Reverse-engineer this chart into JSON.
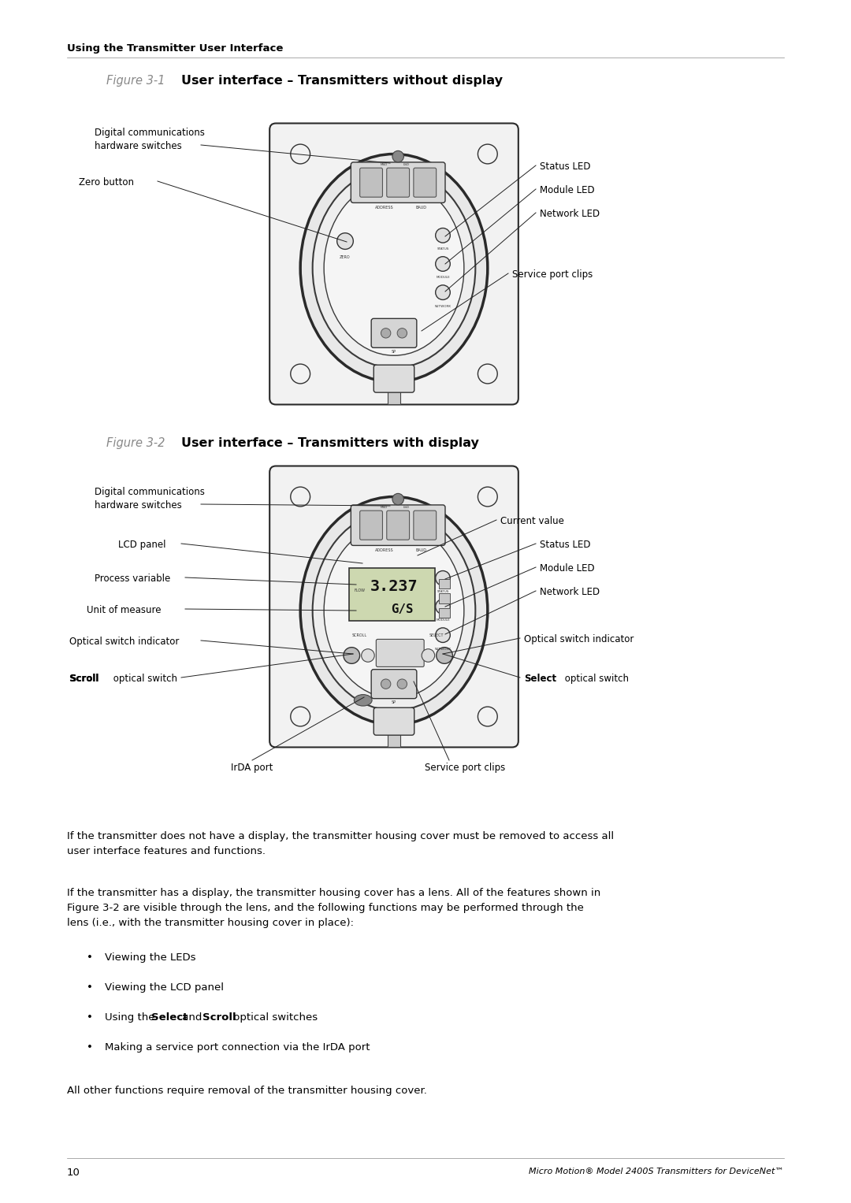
{
  "page_width": 10.8,
  "page_height": 15.27,
  "bg_color": "#ffffff",
  "text_color": "#000000",
  "header_text": "Using the Transmitter User Interface",
  "fig1_label": "Figure 3-1",
  "fig1_title": "User interface – Transmitters without display",
  "fig2_label": "Figure 3-2",
  "fig2_title": "User interface – Transmitters with display",
  "footer_page": "10",
  "footer_right": "Micro Motion® Model 2400S Transmitters for DeviceNet™",
  "body_para1": "If the transmitter does not have a display, the transmitter housing cover must be removed to access all\nuser interface features and functions.",
  "body_para2": "If the transmitter has a display, the transmitter housing cover has a lens. All of the features shown in\nFigure 3-2 are visible through the lens, and the following functions may be performed through the\nlens (i.e., with the transmitter housing cover in place):",
  "bullet1": "Viewing the LEDs",
  "bullet2": "Viewing the LCD panel",
  "bullet3_pre": "Using the ",
  "bullet3_b1": "Select",
  "bullet3_mid": " and ",
  "bullet3_b2": "Scroll",
  "bullet3_post": " optical switches",
  "bullet4": "Making a service port connection via the IrDA port",
  "final_line": "All other functions require removal of the transmitter housing cover.",
  "lfs": 8.5,
  "bfs": 9.5,
  "hfs": 9.5,
  "title_fs": 11.5
}
